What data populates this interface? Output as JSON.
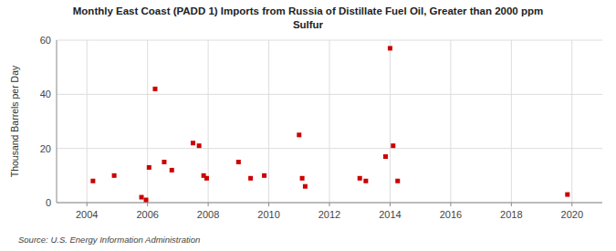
{
  "chart_data": {
    "type": "scatter",
    "title": "Monthly East Coast (PADD 1) Imports from Russia of Distillate Fuel Oil, Greater than 2000 ppm",
    "subtitle": "Sulfur",
    "y_label": "Thousand Barrels per Day",
    "source": "Source: U.S. Energy Information Administration",
    "x": [
      2004.2,
      2004.9,
      2005.8,
      2005.95,
      2006.05,
      2006.25,
      2006.55,
      2006.8,
      2007.5,
      2007.7,
      2007.85,
      2007.95,
      2009.0,
      2009.4,
      2009.85,
      2011.0,
      2011.1,
      2011.2,
      2013.0,
      2013.2,
      2013.85,
      2014.0,
      2014.1,
      2014.25,
      2019.85
    ],
    "values": [
      8,
      10,
      2,
      1,
      13,
      42,
      15,
      12,
      22,
      21,
      10,
      9,
      15,
      9,
      10,
      25,
      9,
      6,
      9,
      8,
      17,
      57,
      21,
      8,
      3
    ],
    "color": "#cc0000",
    "marker": "square",
    "xlim": [
      2003.0,
      2021.0
    ],
    "ylim": [
      0,
      60
    ],
    "xticks": [
      2004,
      2006,
      2008,
      2010,
      2012,
      2014,
      2016,
      2018,
      2020
    ],
    "yticks": [
      0,
      20,
      40,
      60
    ],
    "grid": true
  }
}
